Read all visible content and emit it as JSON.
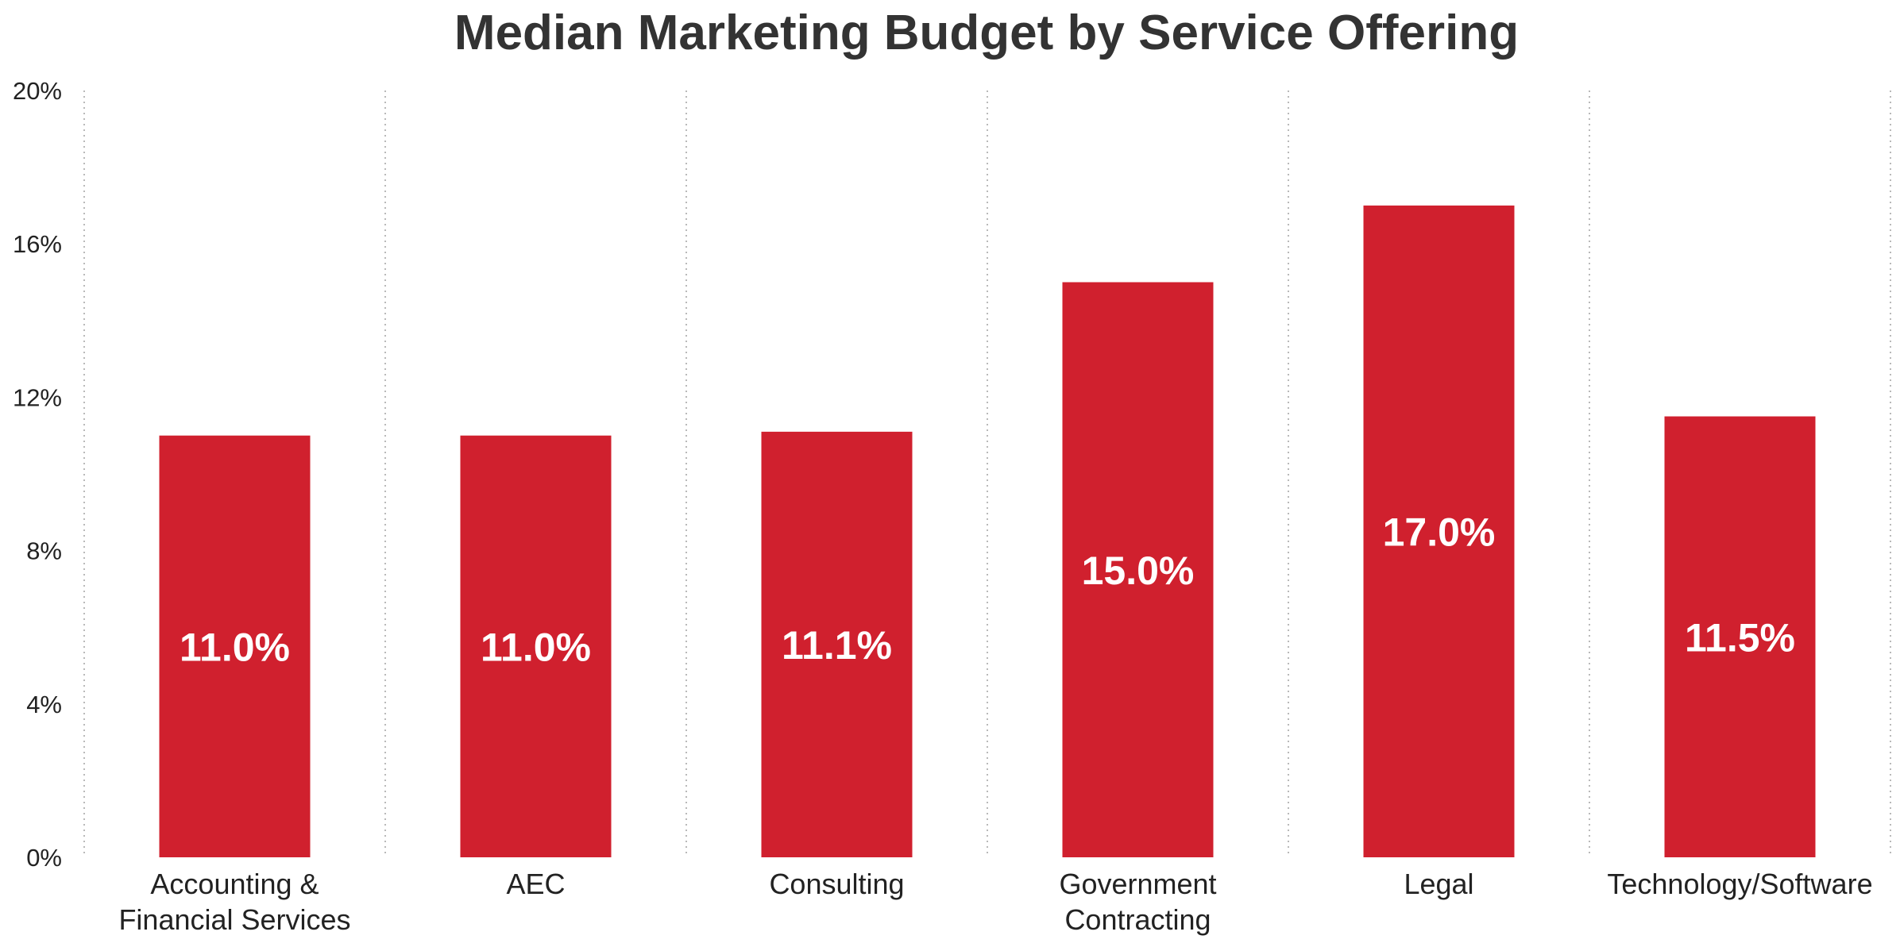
{
  "chart_data": {
    "type": "bar",
    "title": "Median Marketing Budget by Service Offering",
    "xlabel": "",
    "ylabel": "",
    "categories": [
      [
        "Accounting &",
        "Financial Services"
      ],
      [
        "AEC"
      ],
      [
        "Consulting"
      ],
      [
        "Government",
        "Contracting"
      ],
      [
        "Legal"
      ],
      [
        "Technology/Software"
      ]
    ],
    "values": [
      11.0,
      11.0,
      11.1,
      15.0,
      17.0,
      11.5
    ],
    "data_labels": [
      "11.0%",
      "11.0%",
      "11.1%",
      "15.0%",
      "17.0%",
      "11.5%"
    ],
    "ylim": [
      0,
      20
    ],
    "yticks": [
      0,
      4,
      8,
      12,
      16,
      20
    ],
    "ytick_labels": [
      "0%",
      "4%",
      "8%",
      "12%",
      "16%",
      "20%"
    ],
    "bar_color": "#d0202e",
    "grid": "vertical dotted separators",
    "legend": "none"
  }
}
